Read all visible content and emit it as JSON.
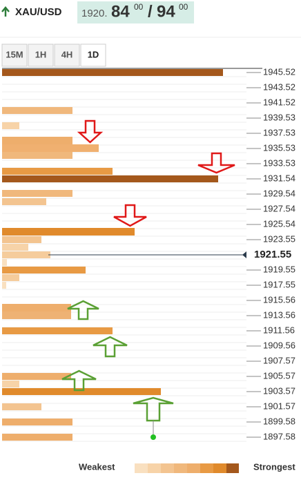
{
  "header": {
    "symbol": "XAU/USD",
    "price_prefix": "1920.",
    "bid_big": "84",
    "bid_small": "00",
    "separator": "/",
    "ask_big": "94",
    "ask_small": "00"
  },
  "tabs": [
    "15M",
    "1H",
    "4H",
    "1D"
  ],
  "levels_above": [
    "1945.52",
    "1943.52",
    "1941.52",
    "1939.53",
    "1937.53",
    "1935.53",
    "1933.53",
    "1931.54",
    "1929.54",
    "1927.54",
    "1925.54",
    "1923.55"
  ],
  "current": "1921.55",
  "levels_below": [
    "1919.55",
    "1917.55",
    "1915.56",
    "1913.56",
    "1911.56",
    "1909.56",
    "1907.57",
    "1905.57",
    "1903.57",
    "1901.57",
    "1899.58",
    "1897.58"
  ],
  "legend": {
    "weakest": "Weakest",
    "strongest": "Strongest"
  }
}
